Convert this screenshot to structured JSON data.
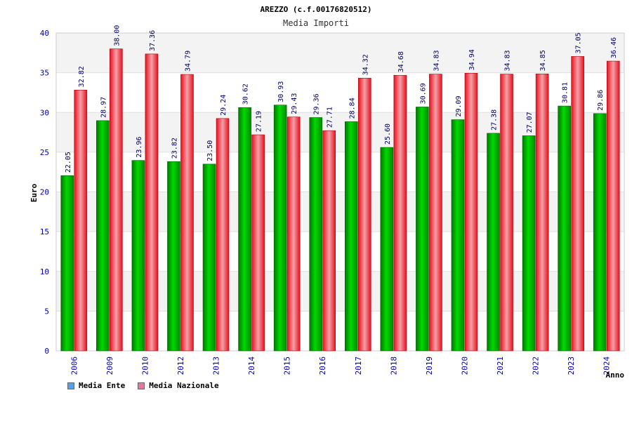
{
  "chart_data": {
    "type": "bar",
    "title": "AREZZO (c.f.00176820512)",
    "subtitle": "Media Importi",
    "xlabel": "Anno",
    "ylabel": "Euro",
    "ylim": [
      0,
      40
    ],
    "yticks": [
      "0",
      "5",
      "10",
      "15",
      "20",
      "25",
      "30",
      "35",
      "40"
    ],
    "categories": [
      "2006",
      "2009",
      "2010",
      "2012",
      "2013",
      "2014",
      "2015",
      "2016",
      "2017",
      "2018",
      "2019",
      "2020",
      "2021",
      "2022",
      "2023",
      "2024"
    ],
    "series": [
      {
        "name": "Media Ente",
        "color": "#00bb00",
        "values": [
          22.05,
          28.97,
          23.96,
          23.82,
          23.5,
          30.62,
          30.93,
          29.36,
          28.84,
          25.6,
          30.69,
          29.09,
          27.38,
          27.07,
          30.81,
          29.86
        ],
        "labels": [
          "22.05",
          "28.97",
          "23.96",
          "23.82",
          "23.50",
          "30.62",
          "30.93",
          "29.36",
          "28.84",
          "25.60",
          "30.69",
          "29.09",
          "27.38",
          "27.07",
          "30.81",
          "29.86"
        ]
      },
      {
        "name": "Media Nazionale",
        "color": "#ee1c2a",
        "values": [
          32.82,
          38.0,
          37.36,
          34.79,
          29.24,
          27.19,
          29.43,
          27.71,
          34.32,
          34.68,
          34.83,
          34.94,
          34.83,
          34.85,
          37.05,
          36.46
        ],
        "labels": [
          "32.82",
          "38.00",
          "37.36",
          "34.79",
          "29.24",
          "27.19",
          "29.43",
          "27.71",
          "34.32",
          "34.68",
          "34.83",
          "34.94",
          "34.83",
          "34.85",
          "37.05",
          "36.46"
        ]
      }
    ],
    "legend": {
      "position": "bottom-left",
      "items": [
        {
          "label": "Media Ente",
          "color": "#5aa0e8"
        },
        {
          "label": "Media Nazionale",
          "color": "#e07aa0"
        }
      ]
    },
    "grid": true
  }
}
